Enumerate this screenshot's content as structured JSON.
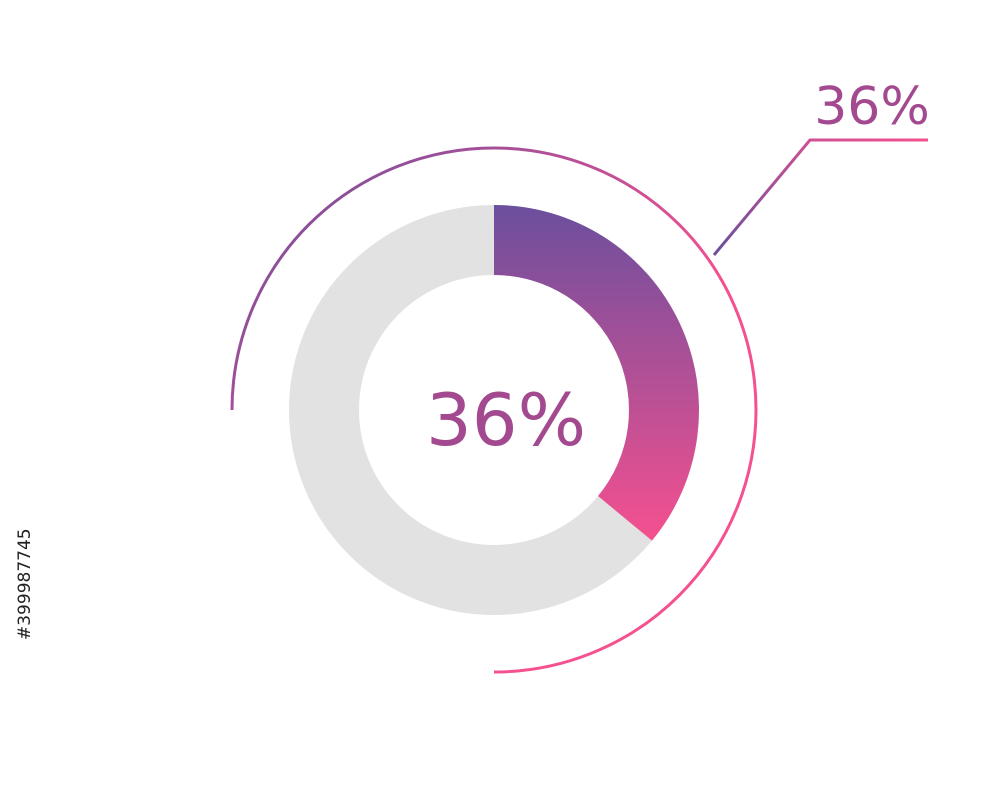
{
  "chart_data": {
    "type": "donut",
    "values": [
      36
    ],
    "value_labels": [
      "36%"
    ],
    "colors": [
      "#6b4f9d",
      "#f5508f"
    ],
    "track_color": "#e2e2e2",
    "label_color": "#a3498f"
  },
  "watermark": "#399987745"
}
